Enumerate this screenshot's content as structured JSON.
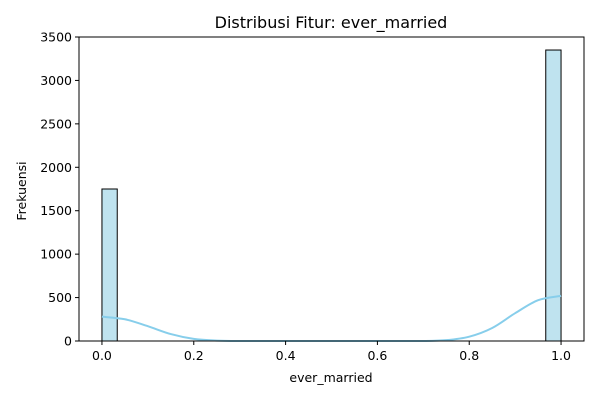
{
  "chart_data": {
    "type": "bar",
    "title": "Distribusi Fitur: ever_married",
    "xlabel": "ever_married",
    "ylabel": "Frekuensi",
    "xlim": [
      -0.05,
      1.05
    ],
    "ylim": [
      0,
      3500
    ],
    "x_ticks": [
      "0.0",
      "0.2",
      "0.4",
      "0.6",
      "0.8",
      "1.0"
    ],
    "y_ticks": [
      "0",
      "500",
      "1000",
      "1500",
      "2000",
      "2500",
      "3000",
      "3500"
    ],
    "bars": [
      {
        "x0": 0.0,
        "x1": 0.0333,
        "value": 1750
      },
      {
        "x0": 0.9667,
        "x1": 1.0,
        "value": 3350
      }
    ],
    "kde": {
      "x": [
        0.0,
        0.05,
        0.1,
        0.15,
        0.2,
        0.25,
        0.3,
        0.4,
        0.5,
        0.6,
        0.7,
        0.75,
        0.8,
        0.85,
        0.9,
        0.95,
        1.0
      ],
      "y": [
        280,
        250,
        170,
        80,
        25,
        5,
        0,
        0,
        0,
        0,
        0,
        10,
        50,
        150,
        320,
        470,
        520
      ]
    },
    "colors": {
      "bar_fill": "#bfe3ef",
      "bar_edge": "#000000",
      "kde_line": "#87ceeb"
    },
    "grid": false
  }
}
